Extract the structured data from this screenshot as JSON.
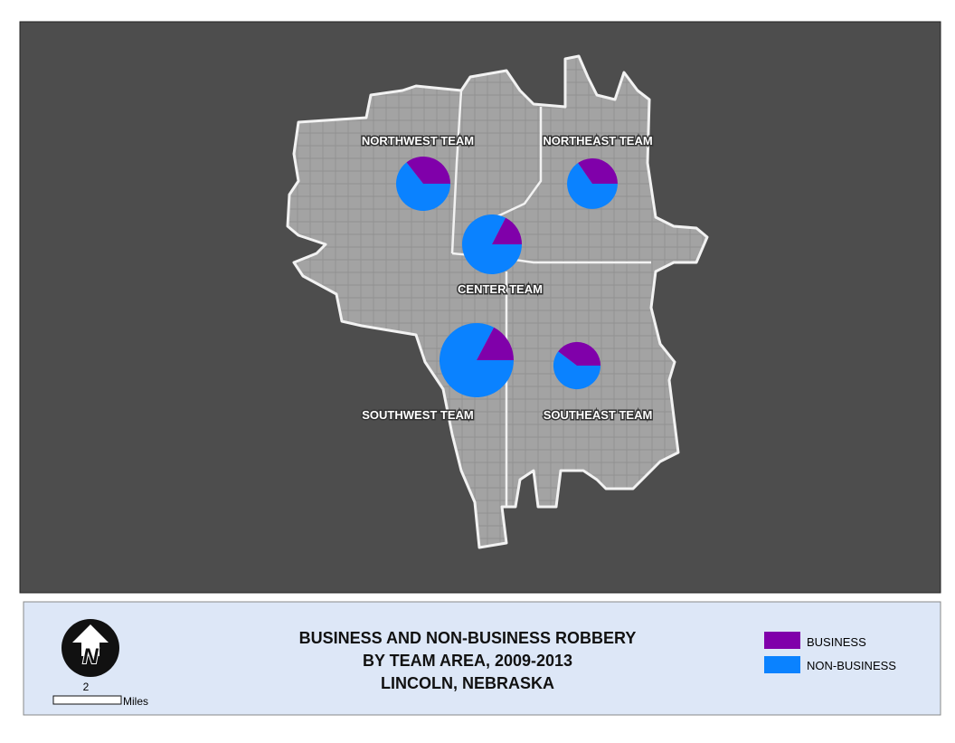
{
  "title": [
    "BUSINESS AND NON-BUSINESS ROBBERY",
    "BY TEAM AREA, 2009-2013",
    "LINCOLN, NEBRASKA"
  ],
  "teams": [
    {
      "name": "NORTHWEST TEAM",
      "business": 32,
      "non_business": 58
    },
    {
      "name": "NORTHEAST TEAM",
      "business": 27,
      "non_business": 51
    },
    {
      "name": "CENTER TEAM",
      "business": 19,
      "non_business": 90
    },
    {
      "name": "SOUTHWEST TEAM",
      "business": 29,
      "non_business": 139
    },
    {
      "name": "SOUTHEAST TEAM",
      "business": 27,
      "non_business": 41
    }
  ],
  "legend": {
    "business": {
      "label": "BUSINESS",
      "color": "#8000aa"
    },
    "non_business": {
      "label": "NON-BUSINESS",
      "color": "#0a82ff"
    }
  },
  "scale": {
    "value": 2,
    "unit": "Miles"
  }
}
